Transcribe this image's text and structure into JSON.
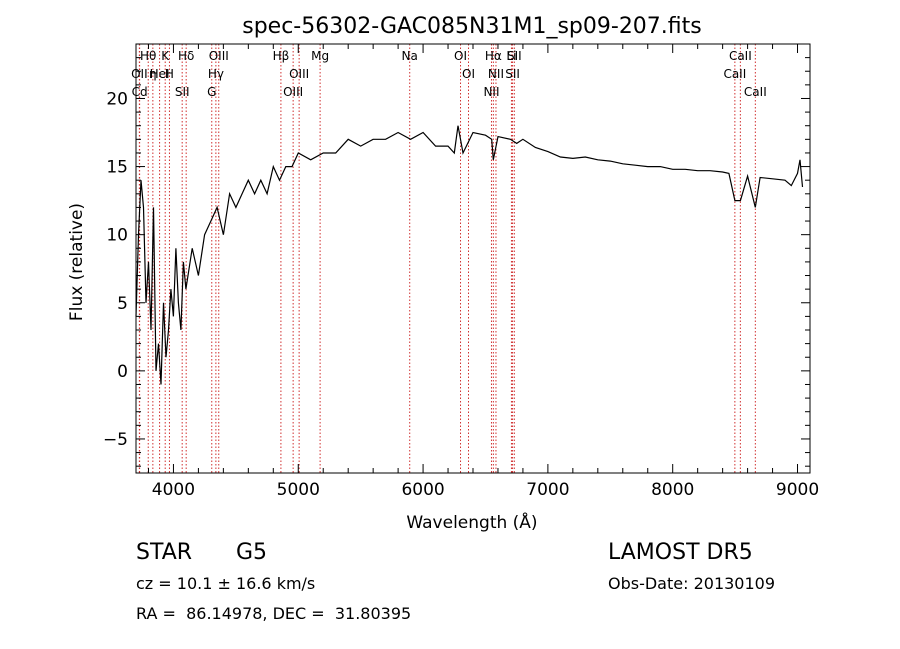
{
  "chart_data": {
    "type": "line",
    "title": "spec-56302-GAC085N31M1_sp09-207.fits",
    "xlabel": "Wavelength (Å)",
    "ylabel": "Flux (relative)",
    "xlim": [
      3700,
      9100
    ],
    "ylim": [
      -7.5,
      24
    ],
    "xticks": [
      4000,
      5000,
      6000,
      7000,
      8000,
      9000
    ],
    "yticks": [
      -5,
      0,
      5,
      10,
      15,
      20
    ],
    "grid": false,
    "series": [
      {
        "x": [
          3700,
          3720,
          3740,
          3760,
          3780,
          3800,
          3820,
          3840,
          3860,
          3880,
          3900,
          3920,
          3940,
          3960,
          3980,
          4000,
          4020,
          4040,
          4060,
          4080,
          4100,
          4150,
          4200,
          4250,
          4300,
          4350,
          4400,
          4450,
          4500,
          4550,
          4600,
          4650,
          4700,
          4750,
          4800,
          4850,
          4900,
          4950,
          5000,
          5100,
          5200,
          5300,
          5400,
          5500,
          5600,
          5700,
          5800,
          5900,
          6000,
          6100,
          6200,
          6250,
          6280,
          6300,
          6320,
          6400,
          6500,
          6550,
          6563,
          6600,
          6700,
          6750,
          6800,
          6900,
          7000,
          7100,
          7200,
          7300,
          7400,
          7500,
          7600,
          7700,
          7800,
          7900,
          8000,
          8100,
          8200,
          8300,
          8400,
          8450,
          8498,
          8542,
          8600,
          8662,
          8700,
          8800,
          8900,
          8950,
          9000,
          9020,
          9040
        ],
        "y": [
          4,
          10,
          14,
          12,
          5,
          8,
          3,
          12,
          0,
          2,
          -1,
          5,
          1,
          3,
          6,
          4,
          9,
          5,
          3,
          8,
          6,
          9,
          7,
          10,
          11,
          12,
          10,
          13,
          12,
          13,
          14,
          13,
          14,
          13,
          15,
          14,
          15,
          15,
          16,
          15.5,
          16,
          16,
          17,
          16.5,
          17,
          17,
          17.5,
          17,
          17.5,
          16.5,
          16.5,
          16,
          18,
          17,
          16,
          17.5,
          17.3,
          17,
          15.5,
          17.2,
          17,
          16.7,
          17,
          16.4,
          16.1,
          15.7,
          15.6,
          15.7,
          15.5,
          15.4,
          15.2,
          15.1,
          15,
          15,
          14.8,
          14.8,
          14.7,
          14.7,
          14.6,
          14.5,
          12.5,
          12.5,
          14.3,
          12,
          14.2,
          14.1,
          14,
          13.6,
          14.5,
          15.5,
          13.5
        ]
      }
    ],
    "lines": [
      {
        "name": "Hθ",
        "x": 3798
      },
      {
        "name": "OII",
        "x": 3727
      },
      {
        "name": "Cd",
        "x": 3729
      },
      {
        "name": "η",
        "x": 3835
      },
      {
        "name": "HeI",
        "x": 3889
      },
      {
        "name": "K",
        "x": 3934
      },
      {
        "name": "H",
        "x": 3968
      },
      {
        "name": "SII",
        "x": 4070
      },
      {
        "name": "Hδ",
        "x": 4102
      },
      {
        "name": "OIII",
        "x": 4363
      },
      {
        "name": "Hγ",
        "x": 4340
      },
      {
        "name": "G",
        "x": 4307
      },
      {
        "name": "Hβ",
        "x": 4861
      },
      {
        "name": "OIII",
        "x": 5007
      },
      {
        "name": "OIII",
        "x": 4959
      },
      {
        "name": "Mg",
        "x": 5175
      },
      {
        "name": "Na",
        "x": 5893
      },
      {
        "name": "OI",
        "x": 6300
      },
      {
        "name": "OI",
        "x": 6364
      },
      {
        "name": "Hα",
        "x": 6563
      },
      {
        "name": "NII",
        "x": 6548
      },
      {
        "name": "NII",
        "x": 6584
      },
      {
        "name": "SII",
        "x": 6717
      },
      {
        "name": "Li",
        "x": 6708
      },
      {
        "name": "SII",
        "x": 6731
      },
      {
        "name": "CaII",
        "x": 8542
      },
      {
        "name": "CaII",
        "x": 8498
      },
      {
        "name": "CaII",
        "x": 8662
      }
    ]
  },
  "info": {
    "class_label": "STAR",
    "subclass": "G5",
    "survey": "LAMOST DR5",
    "cz_line": "cz = 10.1 ± 16.6 km/s",
    "obs_date": "Obs-Date: 20130109",
    "radec": "RA =  86.14978, DEC =  31.80395"
  }
}
